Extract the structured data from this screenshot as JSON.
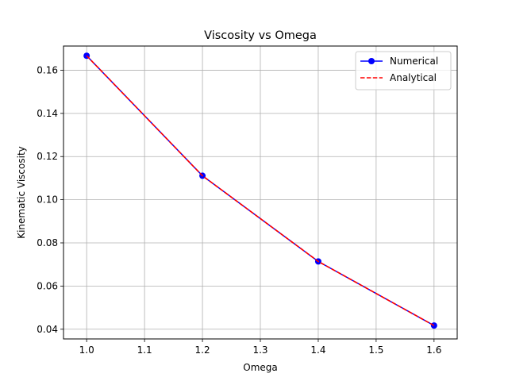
{
  "chart_data": {
    "type": "line",
    "title": "Viscosity vs Omega",
    "xlabel": "Omega",
    "ylabel": "Kinematic Viscosity",
    "xlim": [
      0.96,
      1.64
    ],
    "ylim": [
      0.0355,
      0.1712
    ],
    "xticks": [
      1.0,
      1.1,
      1.2,
      1.3,
      1.4,
      1.5,
      1.6
    ],
    "xtick_labels": [
      "1.0",
      "1.1",
      "1.2",
      "1.3",
      "1.4",
      "1.5",
      "1.6"
    ],
    "yticks": [
      0.04,
      0.06,
      0.08,
      0.1,
      0.12,
      0.14,
      0.16
    ],
    "ytick_labels": [
      "0.04",
      "0.06",
      "0.08",
      "0.10",
      "0.12",
      "0.14",
      "0.16"
    ],
    "grid": true,
    "legend_position": "top-right",
    "x": [
      1.0,
      1.2,
      1.4,
      1.6
    ],
    "series": [
      {
        "name": "Numerical",
        "values": [
          0.1667,
          0.1111,
          0.0714,
          0.0417
        ],
        "color": "#0000ff",
        "line_style": "solid",
        "marker": "circle"
      },
      {
        "name": "Analytical",
        "values": [
          0.1667,
          0.1111,
          0.0714,
          0.0417
        ],
        "color": "#ff0000",
        "line_style": "dashed",
        "marker": "none"
      }
    ]
  }
}
